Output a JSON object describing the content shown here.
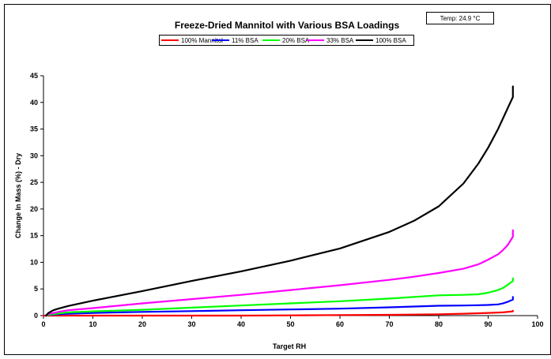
{
  "chart_data": {
    "type": "line",
    "title": "Freeze-Dried Mannitol with Various BSA Loadings",
    "annotation": "Temp:  24.9 °C",
    "xlabel": "Target RH",
    "ylabel": "Change In Mass (%) - Dry",
    "xlim": [
      0,
      100
    ],
    "ylim": [
      0,
      45
    ],
    "xticks": [
      "0",
      "10",
      "20",
      "30",
      "40",
      "50",
      "60",
      "70",
      "80",
      "90",
      "100"
    ],
    "yticks": [
      "0",
      "5",
      "10",
      "15",
      "20",
      "25",
      "30",
      "35",
      "40",
      "45"
    ],
    "grid": false,
    "legend_position": "top-center",
    "series": [
      {
        "name": "100% Mannitol",
        "color": "#ff0000",
        "x": [
          0,
          10,
          20,
          30,
          40,
          50,
          60,
          70,
          80,
          85,
          90,
          93,
          95,
          95
        ],
        "y": [
          0,
          0,
          0,
          0,
          0,
          0.05,
          0.1,
          0.15,
          0.25,
          0.35,
          0.5,
          0.6,
          0.8,
          0.9
        ]
      },
      {
        "name": "11% BSA",
        "color": "#0000ff",
        "x": [
          0.5,
          1,
          3,
          5,
          10,
          20,
          30,
          40,
          50,
          60,
          70,
          75,
          80,
          85,
          88,
          90,
          92,
          93,
          94,
          95,
          95
        ],
        "y": [
          0,
          0.1,
          0.25,
          0.35,
          0.5,
          0.7,
          0.85,
          1.0,
          1.15,
          1.3,
          1.55,
          1.7,
          1.85,
          1.9,
          1.95,
          2.0,
          2.1,
          2.3,
          2.6,
          3.0,
          3.5
        ]
      },
      {
        "name": "20% BSA",
        "color": "#00ff00",
        "x": [
          0.5,
          1,
          3,
          5,
          10,
          20,
          30,
          40,
          50,
          60,
          70,
          75,
          80,
          85,
          88,
          90,
          92,
          93,
          94,
          95,
          95
        ],
        "y": [
          0,
          0.15,
          0.4,
          0.6,
          0.8,
          1.1,
          1.5,
          1.9,
          2.3,
          2.7,
          3.2,
          3.5,
          3.8,
          3.9,
          4.0,
          4.3,
          4.8,
          5.2,
          5.8,
          6.5,
          7.0
        ]
      },
      {
        "name": "33% BSA",
        "color": "#ff00ff",
        "x": [
          0.5,
          1,
          3,
          5,
          10,
          20,
          30,
          40,
          50,
          60,
          70,
          75,
          80,
          85,
          88,
          90,
          92,
          93,
          94,
          95,
          95
        ],
        "y": [
          0,
          0.3,
          0.7,
          1.0,
          1.4,
          2.3,
          3.1,
          3.9,
          4.8,
          5.7,
          6.7,
          7.3,
          8.0,
          8.8,
          9.6,
          10.5,
          11.5,
          12.3,
          13.3,
          14.8,
          16.0
        ]
      },
      {
        "name": "100% BSA",
        "color": "#000000",
        "x": [
          0.5,
          1,
          2,
          3,
          5,
          10,
          20,
          30,
          40,
          50,
          60,
          70,
          75,
          80,
          85,
          88,
          90,
          92,
          93,
          94,
          95,
          95
        ],
        "y": [
          0,
          0.5,
          1.0,
          1.3,
          1.8,
          2.8,
          4.6,
          6.5,
          8.3,
          10.3,
          12.6,
          15.7,
          17.8,
          20.5,
          24.8,
          28.5,
          31.5,
          35.0,
          37.0,
          39.0,
          41.0,
          43.0
        ]
      }
    ]
  }
}
